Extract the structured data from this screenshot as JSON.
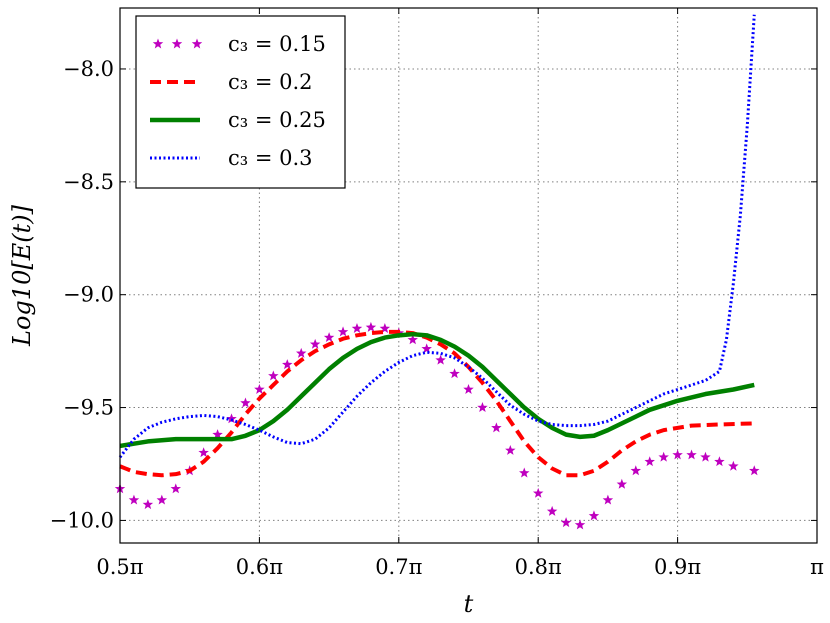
{
  "chart_data": {
    "type": "line",
    "xlabel": "t",
    "ylabel": "Log10[E(t)]",
    "xlim": [
      0.5,
      1.0
    ],
    "ylim": [
      -10.1,
      -7.73
    ],
    "grid": true,
    "legend_position": "top-left",
    "x_unit": "pi",
    "x_ticks": [
      0.5,
      0.6,
      0.7,
      0.8,
      0.9,
      1.0
    ],
    "x_tick_labels": [
      "0.5π",
      "0.6π",
      "0.7π",
      "0.8π",
      "0.9π",
      "π"
    ],
    "y_ticks": [
      -10.0,
      -9.5,
      -9.0,
      -8.5,
      -8.0
    ],
    "y_tick_labels": [
      "−10.0",
      "−9.5",
      "−9.0",
      "−8.5",
      "−8.0"
    ],
    "series": [
      {
        "name": "c3 = 0.15",
        "legend_label": "c₃ = 0.15",
        "color": "#bf00bf",
        "style": "star",
        "points": [
          [
            0.5,
            -9.86
          ],
          [
            0.51,
            -9.91
          ],
          [
            0.52,
            -9.93
          ],
          [
            0.53,
            -9.91
          ],
          [
            0.54,
            -9.86
          ],
          [
            0.55,
            -9.78
          ],
          [
            0.56,
            -9.7
          ],
          [
            0.57,
            -9.62
          ],
          [
            0.58,
            -9.55
          ],
          [
            0.59,
            -9.48
          ],
          [
            0.6,
            -9.42
          ],
          [
            0.61,
            -9.36
          ],
          [
            0.62,
            -9.31
          ],
          [
            0.63,
            -9.26
          ],
          [
            0.64,
            -9.22
          ],
          [
            0.65,
            -9.19
          ],
          [
            0.66,
            -9.165
          ],
          [
            0.67,
            -9.15
          ],
          [
            0.68,
            -9.145
          ],
          [
            0.69,
            -9.15
          ],
          [
            0.7,
            -9.17
          ],
          [
            0.71,
            -9.2
          ],
          [
            0.72,
            -9.24
          ],
          [
            0.73,
            -9.29
          ],
          [
            0.74,
            -9.35
          ],
          [
            0.75,
            -9.42
          ],
          [
            0.76,
            -9.5
          ],
          [
            0.77,
            -9.59
          ],
          [
            0.78,
            -9.69
          ],
          [
            0.79,
            -9.79
          ],
          [
            0.8,
            -9.88
          ],
          [
            0.81,
            -9.96
          ],
          [
            0.82,
            -10.01
          ],
          [
            0.83,
            -10.02
          ],
          [
            0.84,
            -9.98
          ],
          [
            0.85,
            -9.91
          ],
          [
            0.86,
            -9.84
          ],
          [
            0.87,
            -9.78
          ],
          [
            0.88,
            -9.74
          ],
          [
            0.89,
            -9.72
          ],
          [
            0.9,
            -9.71
          ],
          [
            0.91,
            -9.71
          ],
          [
            0.92,
            -9.72
          ],
          [
            0.93,
            -9.74
          ],
          [
            0.94,
            -9.76
          ],
          [
            0.955,
            -9.78
          ]
        ]
      },
      {
        "name": "c3 = 0.2",
        "legend_label": "c₃ = 0.2",
        "color": "#ff0000",
        "style": "dashed",
        "points": [
          [
            0.5,
            -9.76
          ],
          [
            0.51,
            -9.785
          ],
          [
            0.52,
            -9.795
          ],
          [
            0.53,
            -9.8
          ],
          [
            0.54,
            -9.795
          ],
          [
            0.55,
            -9.78
          ],
          [
            0.56,
            -9.74
          ],
          [
            0.57,
            -9.68
          ],
          [
            0.58,
            -9.61
          ],
          [
            0.59,
            -9.53
          ],
          [
            0.6,
            -9.46
          ],
          [
            0.61,
            -9.4
          ],
          [
            0.62,
            -9.34
          ],
          [
            0.63,
            -9.29
          ],
          [
            0.64,
            -9.25
          ],
          [
            0.65,
            -9.22
          ],
          [
            0.66,
            -9.195
          ],
          [
            0.67,
            -9.18
          ],
          [
            0.68,
            -9.17
          ],
          [
            0.69,
            -9.165
          ],
          [
            0.7,
            -9.165
          ],
          [
            0.71,
            -9.17
          ],
          [
            0.72,
            -9.19
          ],
          [
            0.73,
            -9.22
          ],
          [
            0.74,
            -9.26
          ],
          [
            0.75,
            -9.32
          ],
          [
            0.76,
            -9.39
          ],
          [
            0.77,
            -9.47
          ],
          [
            0.78,
            -9.56
          ],
          [
            0.79,
            -9.65
          ],
          [
            0.8,
            -9.72
          ],
          [
            0.81,
            -9.77
          ],
          [
            0.82,
            -9.8
          ],
          [
            0.83,
            -9.8
          ],
          [
            0.84,
            -9.78
          ],
          [
            0.85,
            -9.74
          ],
          [
            0.86,
            -9.69
          ],
          [
            0.87,
            -9.65
          ],
          [
            0.88,
            -9.62
          ],
          [
            0.89,
            -9.6
          ],
          [
            0.9,
            -9.59
          ],
          [
            0.91,
            -9.58
          ],
          [
            0.93,
            -9.575
          ],
          [
            0.955,
            -9.57
          ]
        ]
      },
      {
        "name": "c3 = 0.25",
        "legend_label": "c₃ = 0.25",
        "color": "#008000",
        "style": "solid",
        "points": [
          [
            0.5,
            -9.67
          ],
          [
            0.51,
            -9.66
          ],
          [
            0.52,
            -9.65
          ],
          [
            0.53,
            -9.645
          ],
          [
            0.54,
            -9.64
          ],
          [
            0.55,
            -9.64
          ],
          [
            0.56,
            -9.64
          ],
          [
            0.57,
            -9.64
          ],
          [
            0.58,
            -9.64
          ],
          [
            0.59,
            -9.625
          ],
          [
            0.6,
            -9.6
          ],
          [
            0.61,
            -9.56
          ],
          [
            0.62,
            -9.51
          ],
          [
            0.63,
            -9.45
          ],
          [
            0.64,
            -9.39
          ],
          [
            0.65,
            -9.33
          ],
          [
            0.66,
            -9.28
          ],
          [
            0.67,
            -9.24
          ],
          [
            0.68,
            -9.21
          ],
          [
            0.69,
            -9.19
          ],
          [
            0.7,
            -9.18
          ],
          [
            0.71,
            -9.175
          ],
          [
            0.72,
            -9.18
          ],
          [
            0.73,
            -9.2
          ],
          [
            0.74,
            -9.23
          ],
          [
            0.75,
            -9.27
          ],
          [
            0.76,
            -9.32
          ],
          [
            0.77,
            -9.38
          ],
          [
            0.78,
            -9.44
          ],
          [
            0.79,
            -9.5
          ],
          [
            0.8,
            -9.55
          ],
          [
            0.81,
            -9.59
          ],
          [
            0.82,
            -9.62
          ],
          [
            0.83,
            -9.63
          ],
          [
            0.84,
            -9.625
          ],
          [
            0.85,
            -9.6
          ],
          [
            0.86,
            -9.57
          ],
          [
            0.87,
            -9.54
          ],
          [
            0.88,
            -9.51
          ],
          [
            0.89,
            -9.49
          ],
          [
            0.9,
            -9.47
          ],
          [
            0.91,
            -9.455
          ],
          [
            0.92,
            -9.44
          ],
          [
            0.93,
            -9.43
          ],
          [
            0.94,
            -9.42
          ],
          [
            0.955,
            -9.4
          ]
        ]
      },
      {
        "name": "c3 = 0.3",
        "legend_label": "c₃ = 0.3",
        "color": "#0000ff",
        "style": "dotted",
        "points": [
          [
            0.5,
            -9.72
          ],
          [
            0.51,
            -9.64
          ],
          [
            0.52,
            -9.59
          ],
          [
            0.53,
            -9.565
          ],
          [
            0.54,
            -9.55
          ],
          [
            0.55,
            -9.54
          ],
          [
            0.56,
            -9.535
          ],
          [
            0.57,
            -9.54
          ],
          [
            0.58,
            -9.555
          ],
          [
            0.59,
            -9.575
          ],
          [
            0.6,
            -9.6
          ],
          [
            0.61,
            -9.63
          ],
          [
            0.62,
            -9.655
          ],
          [
            0.63,
            -9.66
          ],
          [
            0.64,
            -9.64
          ],
          [
            0.65,
            -9.59
          ],
          [
            0.66,
            -9.52
          ],
          [
            0.67,
            -9.45
          ],
          [
            0.68,
            -9.39
          ],
          [
            0.69,
            -9.34
          ],
          [
            0.7,
            -9.3
          ],
          [
            0.71,
            -9.27
          ],
          [
            0.72,
            -9.255
          ],
          [
            0.73,
            -9.26
          ],
          [
            0.74,
            -9.28
          ],
          [
            0.75,
            -9.32
          ],
          [
            0.76,
            -9.37
          ],
          [
            0.77,
            -9.43
          ],
          [
            0.78,
            -9.49
          ],
          [
            0.79,
            -9.53
          ],
          [
            0.8,
            -9.56
          ],
          [
            0.81,
            -9.575
          ],
          [
            0.82,
            -9.58
          ],
          [
            0.83,
            -9.58
          ],
          [
            0.84,
            -9.575
          ],
          [
            0.85,
            -9.56
          ],
          [
            0.86,
            -9.53
          ],
          [
            0.87,
            -9.5
          ],
          [
            0.88,
            -9.47
          ],
          [
            0.89,
            -9.44
          ],
          [
            0.9,
            -9.42
          ],
          [
            0.91,
            -9.4
          ],
          [
            0.92,
            -9.38
          ],
          [
            0.93,
            -9.34
          ],
          [
            0.935,
            -9.2
          ],
          [
            0.94,
            -8.95
          ],
          [
            0.945,
            -8.65
          ],
          [
            0.95,
            -8.25
          ],
          [
            0.955,
            -7.76
          ]
        ]
      }
    ]
  }
}
